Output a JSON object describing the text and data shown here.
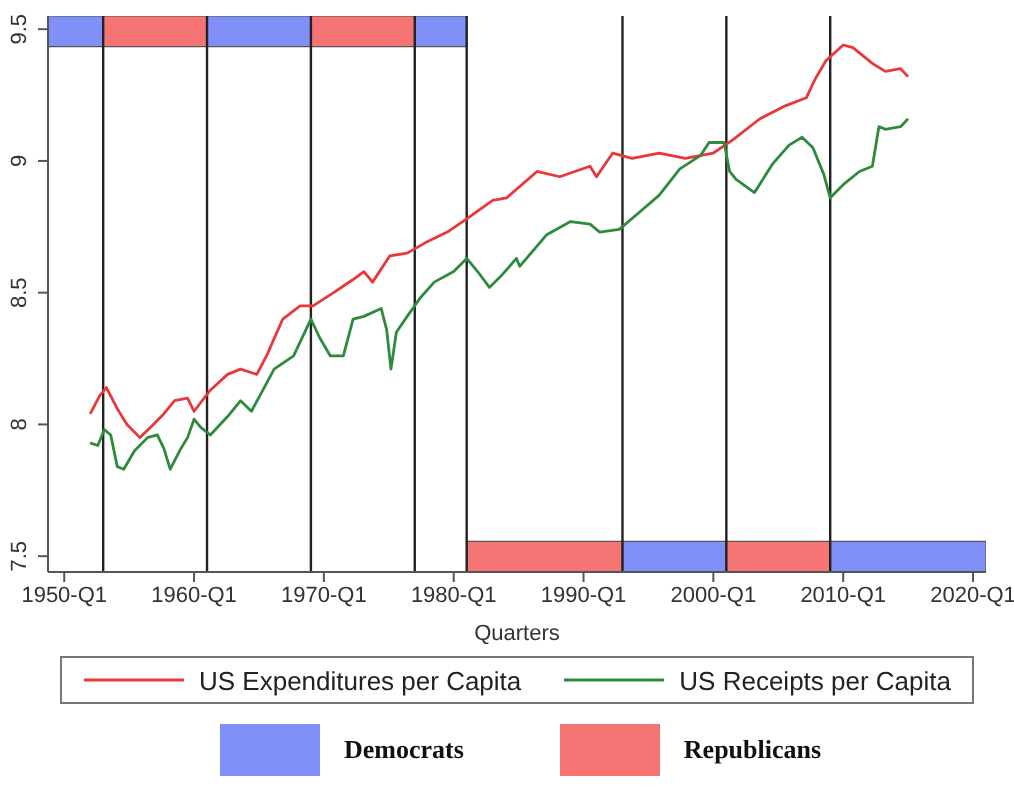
{
  "chart_data": {
    "type": "line",
    "xlabel": "Quarters",
    "xlim": [
      "1948-10",
      "2021-01"
    ],
    "ylim": [
      7.44,
      9.55
    ],
    "xticks": [
      {
        "value": "1950-01",
        "label": "1950-Q1"
      },
      {
        "value": "1960-01",
        "label": "1960-Q1"
      },
      {
        "value": "1970-01",
        "label": "1970-Q1"
      },
      {
        "value": "1980-01",
        "label": "1980-Q1"
      },
      {
        "value": "1990-01",
        "label": "1990-Q1"
      },
      {
        "value": "2000-01",
        "label": "2000-Q1"
      },
      {
        "value": "2010-01",
        "label": "2010-Q1"
      },
      {
        "value": "2020-01",
        "label": "2020-Q1"
      }
    ],
    "yticks": [
      7.5,
      8,
      8.5,
      9,
      9.5
    ],
    "grid": false,
    "legend": "bottom",
    "marker": "none",
    "line_style": "solid",
    "series": [
      {
        "name": "US Expenditures per Capita",
        "color": "#e8383a",
        "x": [
          "1952-01",
          "1952-10",
          "1953-04",
          "1954-02",
          "1954-11",
          "1955-11",
          "1956-09",
          "1957-09",
          "1958-07",
          "1959-07",
          "1960-01",
          "1961-04",
          "1962-08",
          "1963-08",
          "1964-11",
          "1965-08",
          "1966-11",
          "1968-03",
          "1969-03",
          "1970-10",
          "1972-04",
          "1973-02",
          "1973-10",
          "1975-02",
          "1976-06",
          "1977-11",
          "1979-07",
          "1981-01",
          "1983-01",
          "1984-02",
          "1986-06",
          "1988-03",
          "1990-07",
          "1991-01",
          "1992-04",
          "1993-10",
          "1995-11",
          "1997-11",
          "2000-01",
          "2001-07",
          "2003-08",
          "2005-08",
          "2007-03",
          "2007-11",
          "2008-09",
          "2010-01",
          "2010-10",
          "2012-04",
          "2013-04",
          "2014-06",
          "2015-01"
        ],
        "values": [
          8.04,
          8.11,
          8.14,
          8.06,
          8.0,
          7.95,
          7.99,
          8.04,
          8.09,
          8.1,
          8.05,
          8.13,
          8.19,
          8.21,
          8.19,
          8.26,
          8.4,
          8.45,
          8.45,
          8.5,
          8.55,
          8.58,
          8.54,
          8.64,
          8.65,
          8.69,
          8.73,
          8.78,
          8.85,
          8.86,
          8.96,
          8.94,
          8.98,
          8.94,
          9.03,
          9.01,
          9.03,
          9.01,
          9.03,
          9.08,
          9.16,
          9.21,
          9.24,
          9.31,
          9.38,
          9.44,
          9.43,
          9.37,
          9.34,
          9.35,
          9.32
        ]
      },
      {
        "name": "US Receipts per Capita",
        "color": "#2e8b3e",
        "x": [
          "1952-01",
          "1952-08",
          "1953-02",
          "1953-08",
          "1954-02",
          "1954-08",
          "1955-06",
          "1956-06",
          "1957-03",
          "1957-09",
          "1958-03",
          "1959-01",
          "1959-07",
          "1960-01",
          "1960-07",
          "1961-04",
          "1962-08",
          "1963-08",
          "1964-06",
          "1965-02",
          "1966-03",
          "1967-09",
          "1969-01",
          "1969-09",
          "1970-07",
          "1971-07",
          "1972-04",
          "1973-02",
          "1974-06",
          "1974-11",
          "1975-03",
          "1975-08",
          "1976-06",
          "1977-06",
          "1978-07",
          "1980-01",
          "1981-01",
          "1982-01",
          "1982-10",
          "1983-08",
          "1984-11",
          "1985-02",
          "1987-03",
          "1989-01",
          "1990-07",
          "1991-04",
          "1992-10",
          "1994-06",
          "1995-11",
          "1997-06",
          "1999-01",
          "1999-09",
          "2000-11",
          "2001-04",
          "2001-10",
          "2003-03",
          "2004-08",
          "2005-11",
          "2006-11",
          "2007-09",
          "2008-07",
          "2009-01",
          "2010-01",
          "2011-04",
          "2012-04",
          "2012-10",
          "2013-04",
          "2014-06",
          "2015-01"
        ],
        "values": [
          7.93,
          7.92,
          7.98,
          7.96,
          7.84,
          7.83,
          7.9,
          7.95,
          7.96,
          7.91,
          7.83,
          7.91,
          7.95,
          8.02,
          7.99,
          7.96,
          8.03,
          8.09,
          8.05,
          8.11,
          8.21,
          8.26,
          8.4,
          8.33,
          8.26,
          8.26,
          8.4,
          8.41,
          8.44,
          8.36,
          8.21,
          8.35,
          8.41,
          8.48,
          8.54,
          8.58,
          8.63,
          8.57,
          8.52,
          8.56,
          8.63,
          8.6,
          8.72,
          8.77,
          8.76,
          8.73,
          8.74,
          8.81,
          8.87,
          8.97,
          9.02,
          9.07,
          9.07,
          8.96,
          8.93,
          8.88,
          8.99,
          9.06,
          9.09,
          9.05,
          8.95,
          8.86,
          8.91,
          8.96,
          8.98,
          9.13,
          9.12,
          9.13,
          9.16
        ]
      }
    ],
    "ref_lines": [
      {
        "axis": "x",
        "value": "1953-01",
        "color": "#222222"
      },
      {
        "axis": "x",
        "value": "1961-01",
        "color": "#222222"
      },
      {
        "axis": "x",
        "value": "1969-01",
        "color": "#222222"
      },
      {
        "axis": "x",
        "value": "1977-01",
        "color": "#222222"
      },
      {
        "axis": "x",
        "value": "1981-01",
        "color": "#222222"
      },
      {
        "axis": "x",
        "value": "1993-01",
        "color": "#222222"
      },
      {
        "axis": "x",
        "value": "2001-01",
        "color": "#222222"
      },
      {
        "axis": "x",
        "value": "2009-01",
        "color": "#222222"
      }
    ],
    "bands": [
      {
        "axis": "x",
        "from": "1948-10",
        "to": "1953-01",
        "label": "Democrats",
        "color": "#8090f8"
      },
      {
        "axis": "x",
        "from": "1953-01",
        "to": "1961-01",
        "label": "Republicans",
        "color": "#f57474"
      },
      {
        "axis": "x",
        "from": "1961-01",
        "to": "1969-01",
        "color": "#8090f8"
      },
      {
        "axis": "x",
        "from": "1969-01",
        "to": "1977-01",
        "color": "#f57474"
      },
      {
        "axis": "x",
        "from": "1977-01",
        "to": "1981-01",
        "color": "#8090f8"
      },
      {
        "axis": "x",
        "from": "1981-01",
        "to": "1993-01",
        "color": "#f57474"
      },
      {
        "axis": "x",
        "from": "1993-01",
        "to": "2001-01",
        "color": "#8090f8"
      },
      {
        "axis": "x",
        "from": "2001-01",
        "to": "2009-01",
        "color": "#f57474"
      },
      {
        "axis": "x",
        "from": "2009-01",
        "to": "2021-01",
        "color": "#8090f8"
      }
    ]
  }
}
